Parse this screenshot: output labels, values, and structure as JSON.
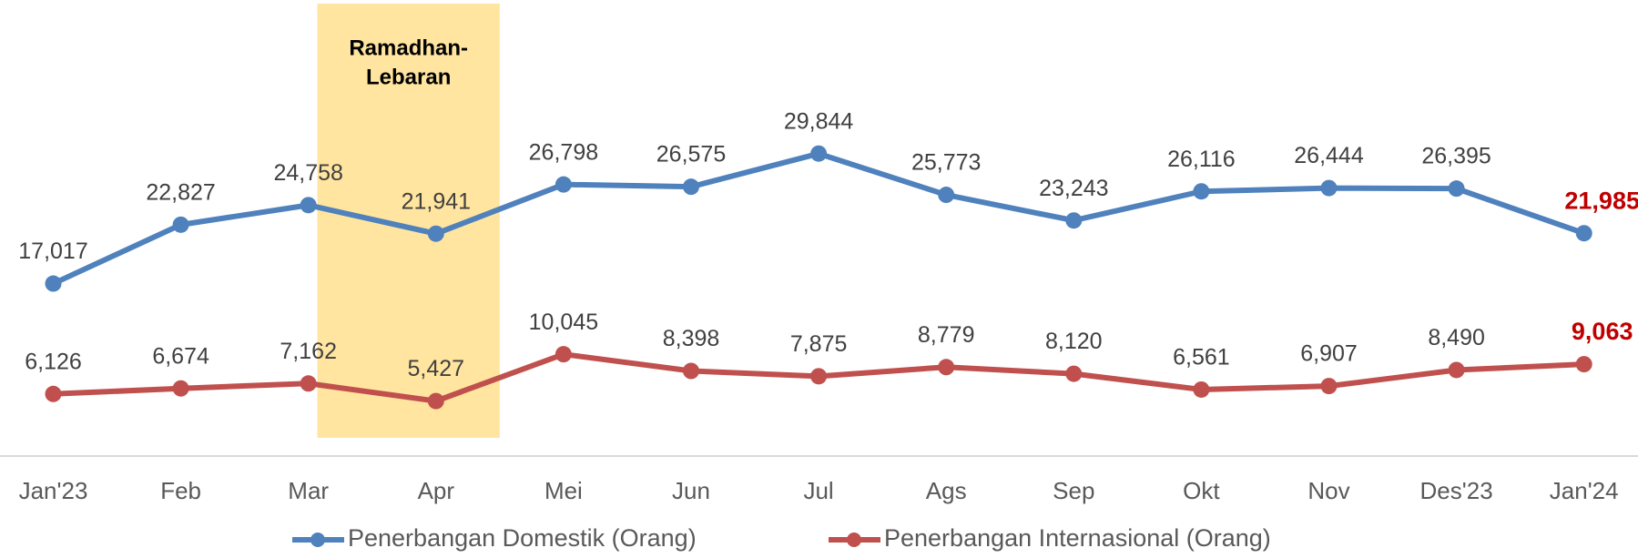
{
  "chart_data": {
    "type": "line",
    "categories": [
      "Jan'23",
      "Feb",
      "Mar",
      "Apr",
      "Mei",
      "Jun",
      "Jul",
      "Ags",
      "Sep",
      "Okt",
      "Nov",
      "Des'23",
      "Jan'24"
    ],
    "series": [
      {
        "name": "Penerbangan Domestik (Orang)",
        "color": "#4f81bd",
        "values": [
          17017,
          22827,
          24758,
          21941,
          26798,
          26575,
          29844,
          25773,
          23243,
          26116,
          26444,
          26395,
          21985
        ],
        "value_labels": [
          "17,017",
          "22,827",
          "24,758",
          "21,941",
          "26,798",
          "26,575",
          "29,844",
          "25,773",
          "23,243",
          "26,116",
          "26,444",
          "26,395",
          "21,985"
        ]
      },
      {
        "name": "Penerbangan Internasional (Orang)",
        "color": "#c0504d",
        "values": [
          6126,
          6674,
          7162,
          5427,
          10045,
          8398,
          7875,
          8779,
          8120,
          6561,
          6907,
          8490,
          9063
        ],
        "value_labels": [
          "6,126",
          "6,674",
          "7,162",
          "5,427",
          "10,045",
          "8,398",
          "7,875",
          "8,779",
          "8,120",
          "6,561",
          "6,907",
          "8,490",
          "9,063"
        ]
      }
    ],
    "ylim": [
      0,
      45000
    ],
    "annotation": {
      "lines": [
        "Ramadhan-",
        "Lebaran"
      ],
      "span": [
        "Mar",
        "Apr"
      ],
      "color": "#ffe59f"
    },
    "last_label_color": "#c00000",
    "legend": "bottom"
  }
}
